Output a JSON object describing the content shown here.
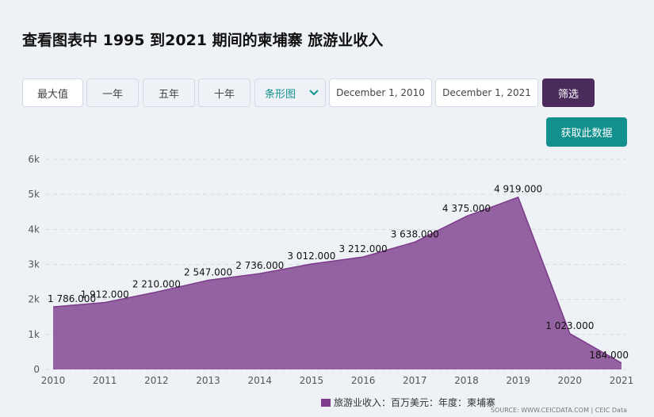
{
  "header": {
    "title": "查看图表中 1995 到2021 期间的柬埔寨 旅游业收入"
  },
  "controls": {
    "range_buttons": [
      "最大值",
      "一年",
      "五年",
      "十年"
    ],
    "chart_type": "条形图",
    "start_date": "December 1, 2010",
    "end_date": "December 1, 2021",
    "filter_button": "筛选",
    "download_button": "获取此数据"
  },
  "chart_data": {
    "type": "area",
    "x": [
      2010,
      2011,
      2012,
      2013,
      2014,
      2015,
      2016,
      2017,
      2018,
      2019,
      2020,
      2021
    ],
    "xlim": [
      2010,
      2021
    ],
    "xticks": [
      2010,
      2011,
      2012,
      2013,
      2014,
      2015,
      2016,
      2017,
      2018,
      2019,
      2020,
      2021
    ],
    "ylim": [
      0,
      6000
    ],
    "yticks": [
      0,
      {
        "value": 1000,
        "label": "1k"
      },
      {
        "value": 2000,
        "label": "2k"
      },
      {
        "value": 3000,
        "label": "3k"
      },
      {
        "value": 4000,
        "label": "4k"
      },
      {
        "value": 5000,
        "label": "5k"
      },
      {
        "value": 6000,
        "label": "6k"
      }
    ],
    "grid": true,
    "series": [
      {
        "name": "旅游业收入：百万美元：年度：柬埔寨",
        "color": "#7d3c8c",
        "values": [
          1786,
          1912,
          2210,
          2547,
          2736,
          3012,
          3212,
          3638,
          4375,
          4919,
          1023,
          184
        ],
        "value_labels": [
          "1 786.000",
          "1 912.000",
          "2 210.000",
          "2 547.000",
          "2 736.000",
          "3 012.000",
          "3 212.000",
          "3 638.000",
          "4 375.000",
          "4 919.000",
          "1 023.000",
          "184.000"
        ]
      }
    ],
    "source": "SOURCE: WWW.CEICDATA.COM | CEIC Data"
  }
}
